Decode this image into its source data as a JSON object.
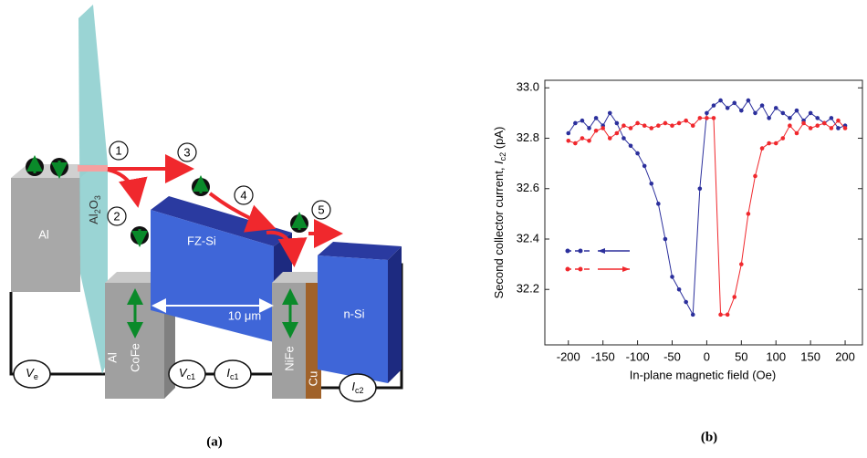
{
  "diagram": {
    "layers": {
      "al_left": "Al",
      "al2o3": [
        "Al",
        "2",
        "O",
        "3"
      ],
      "fz_si": "FZ-Si",
      "n_si": "n-Si",
      "al_small": "Al",
      "cofe": "CoFe",
      "nife": "NiFe",
      "cu": "Cu"
    },
    "steps": [
      "1",
      "2",
      "3",
      "4",
      "5"
    ],
    "distance": "10 μm",
    "meters": [
      {
        "symbol": "V",
        "sub": "e"
      },
      {
        "symbol": "V",
        "sub": "c1"
      },
      {
        "symbol": "I",
        "sub": "c1"
      },
      {
        "symbol": "I",
        "sub": "c2"
      }
    ],
    "caption": "(a)"
  },
  "chart_data": {
    "type": "scatter",
    "caption": "(b)",
    "x_label": "In-plane magnetic field (Oe)",
    "y_label": {
      "text": "Second collector current, ",
      "symbol": "I",
      "sub": "c2",
      "unit": " (pA)"
    },
    "x": [
      -200,
      -190,
      -180,
      -170,
      -160,
      -150,
      -140,
      -130,
      -120,
      -110,
      -100,
      -90,
      -80,
      -70,
      -60,
      -50,
      -40,
      -30,
      -20,
      -10,
      0,
      10,
      20,
      30,
      40,
      50,
      60,
      70,
      80,
      90,
      100,
      110,
      120,
      130,
      140,
      150,
      160,
      170,
      180,
      190,
      200
    ],
    "series": [
      {
        "color": "#2b2f9c",
        "direction": "left",
        "values": [
          32.82,
          32.86,
          32.87,
          32.84,
          32.88,
          32.85,
          32.9,
          32.86,
          32.8,
          32.77,
          32.74,
          32.69,
          32.62,
          32.54,
          32.4,
          32.25,
          32.2,
          32.15,
          32.1,
          32.6,
          32.9,
          32.93,
          32.95,
          32.92,
          32.94,
          32.91,
          32.95,
          32.9,
          32.93,
          32.88,
          32.92,
          32.9,
          32.88,
          32.91,
          32.87,
          32.9,
          32.88,
          32.86,
          32.88,
          32.84,
          32.85
        ]
      },
      {
        "color": "#f0282d",
        "direction": "right",
        "values": [
          32.79,
          32.78,
          32.8,
          32.79,
          32.83,
          32.84,
          32.8,
          32.82,
          32.85,
          32.84,
          32.86,
          32.85,
          32.84,
          32.85,
          32.86,
          32.85,
          32.86,
          32.87,
          32.85,
          32.88,
          32.88,
          32.88,
          32.1,
          32.1,
          32.17,
          32.3,
          32.5,
          32.65,
          32.76,
          32.78,
          32.78,
          32.8,
          32.85,
          32.82,
          32.86,
          32.84,
          32.85,
          32.86,
          32.84,
          32.87,
          32.84
        ]
      }
    ],
    "xlim": [
      -234,
      225
    ],
    "ylim": [
      31.98,
      33.03
    ],
    "xticks": [
      -200,
      -150,
      -100,
      -50,
      0,
      50,
      100,
      150,
      200
    ],
    "yticks": [
      {
        "value": 33,
        "label": "33.0"
      },
      32.8,
      32.6,
      32.4,
      32.2
    ]
  }
}
